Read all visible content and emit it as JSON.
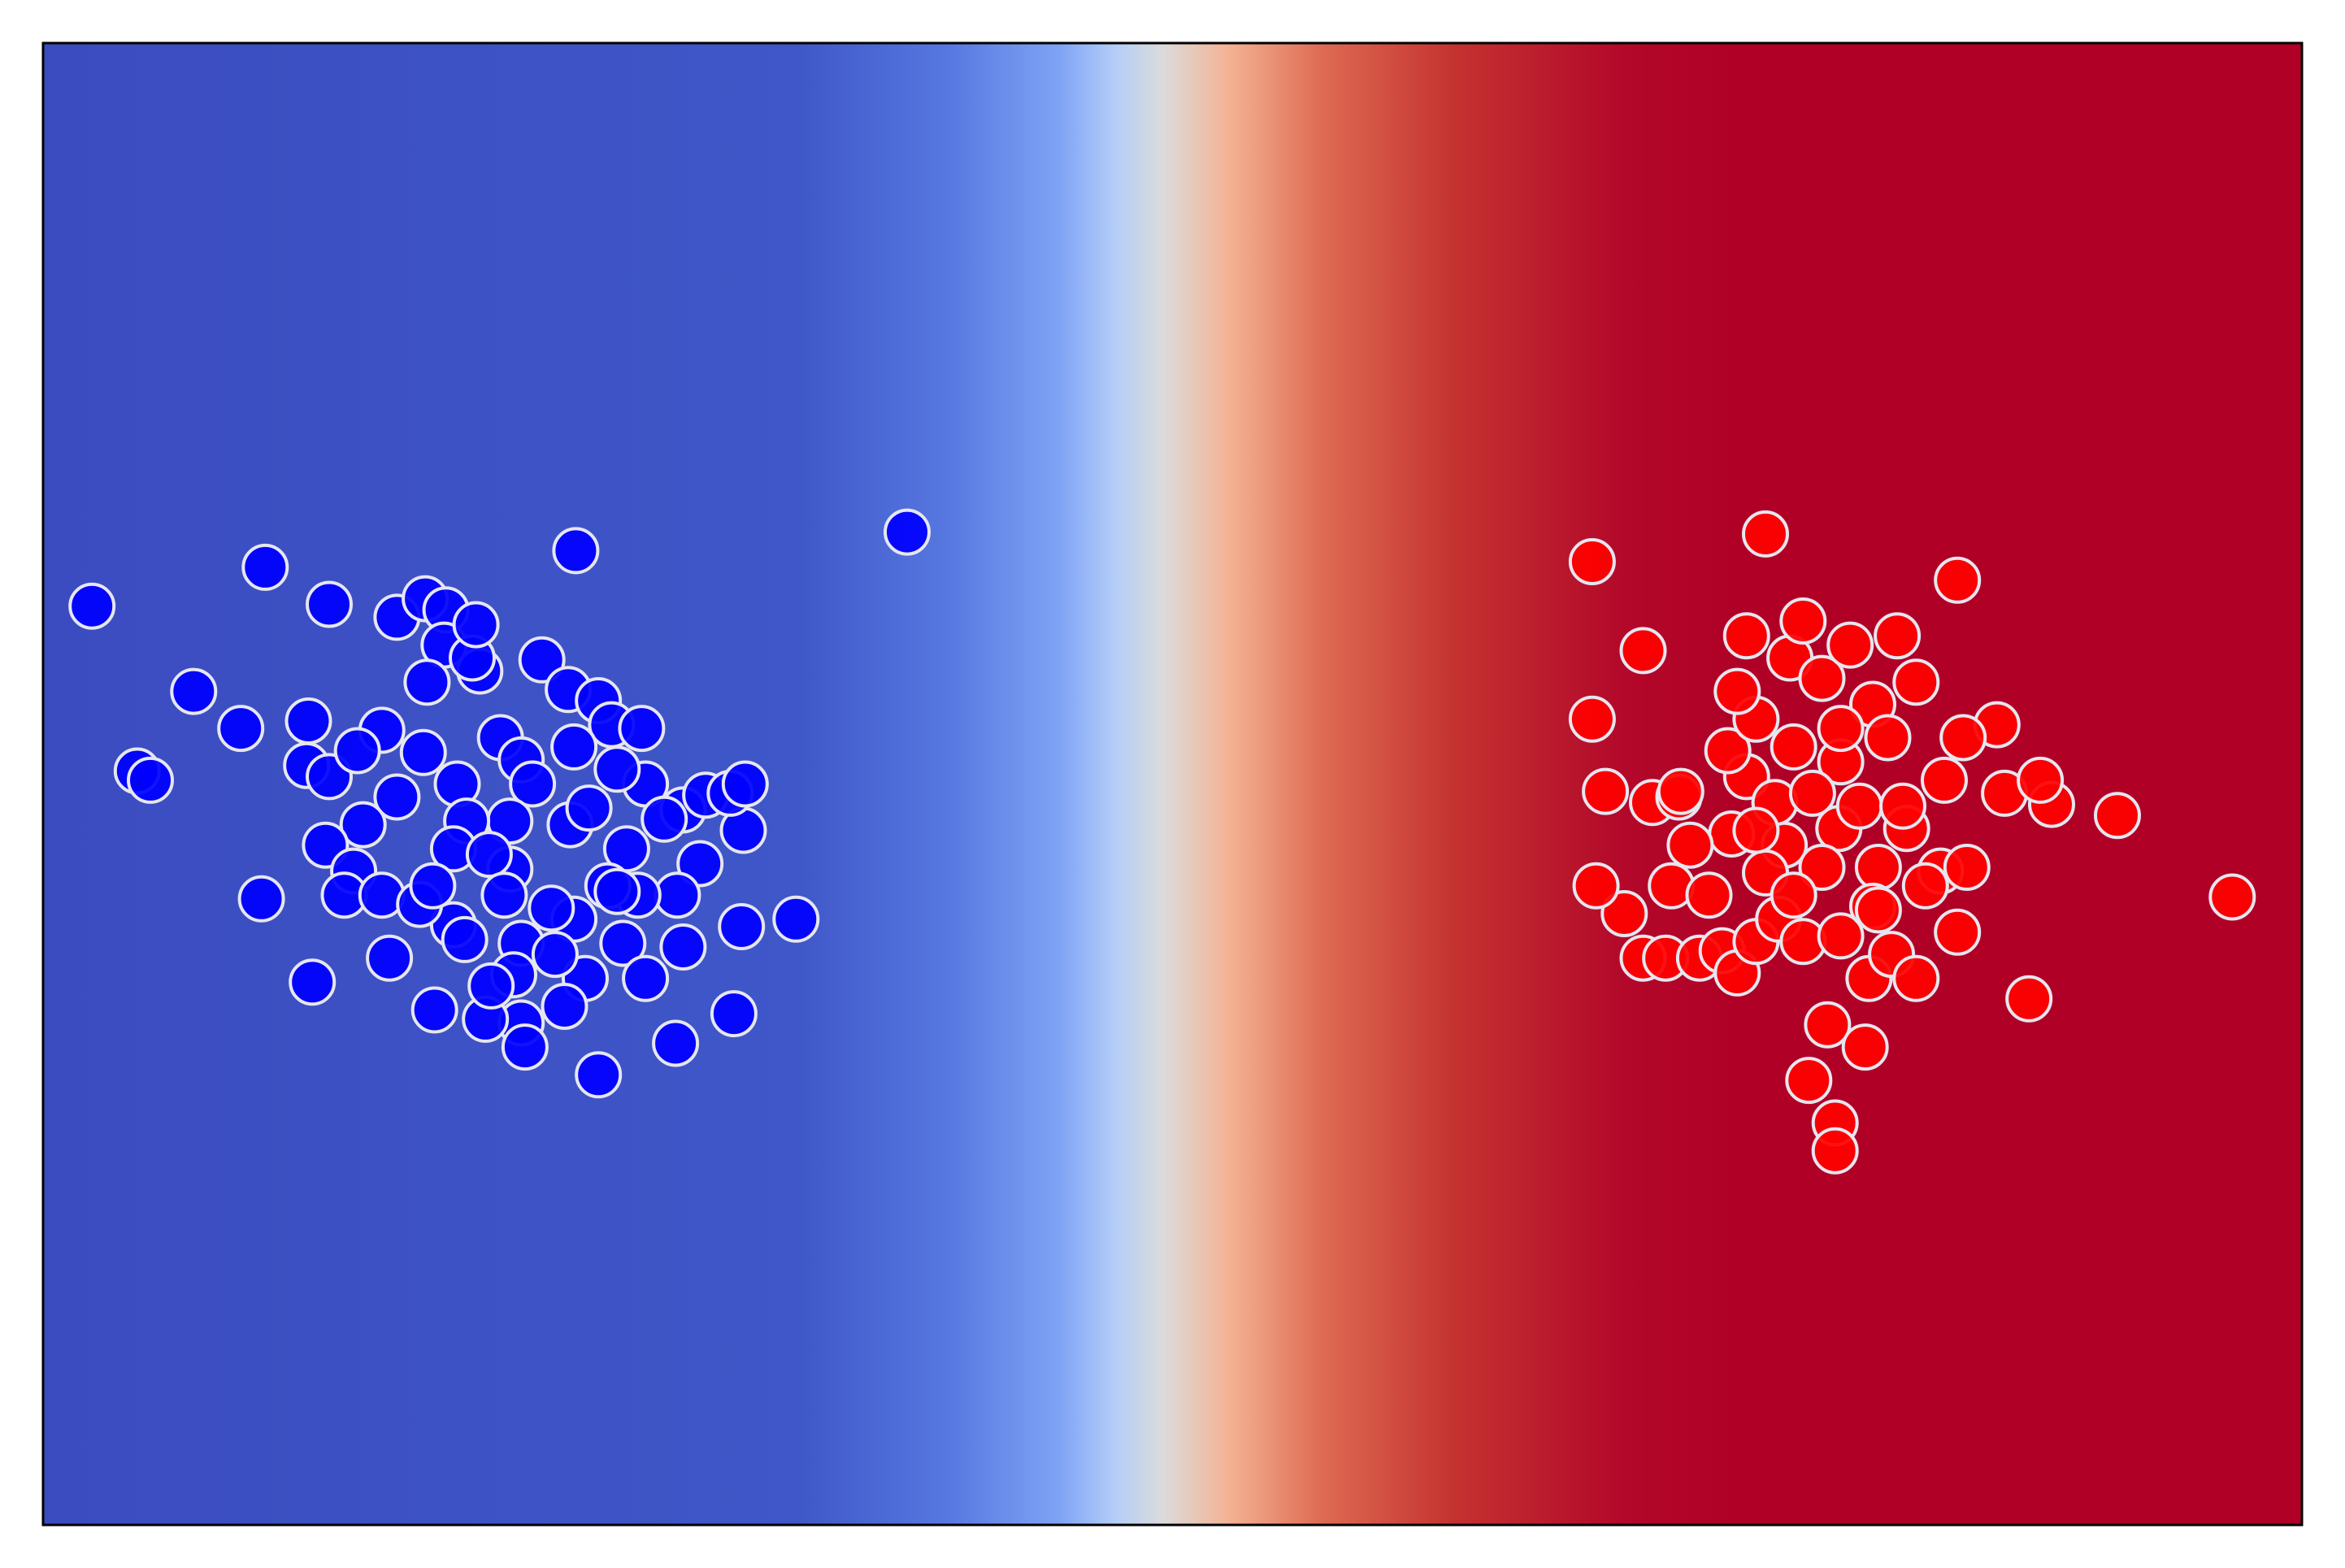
{
  "chart_data": {
    "type": "scatter",
    "title": "",
    "xlabel": "",
    "ylabel": "",
    "xlim": [
      -6,
      6
    ],
    "ylim": [
      -4,
      4
    ],
    "grid": false,
    "axis_ticks": "none",
    "background": {
      "type": "decision-surface",
      "colormap": "coolwarm",
      "boundary_x": 0.8,
      "stops": [
        {
          "x": -6.0,
          "color": "#3B4CC0"
        },
        {
          "x": -2.0,
          "color": "#3F57C8"
        },
        {
          "x": -1.2,
          "color": "#5677E0"
        },
        {
          "x": -0.6,
          "color": "#7FA3F5"
        },
        {
          "x": -0.3,
          "color": "#B5CEF7"
        },
        {
          "x": -0.05,
          "color": "#DBDBDB"
        },
        {
          "x": 0.3,
          "color": "#F4B293"
        },
        {
          "x": 0.8,
          "color": "#DE6A52"
        },
        {
          "x": 1.5,
          "color": "#C43230"
        },
        {
          "x": 2.4,
          "color": "#B3082A"
        },
        {
          "x": 3.0,
          "color": "#B00026"
        },
        {
          "x": 6.0,
          "color": "#B00026"
        }
      ]
    },
    "series": [
      {
        "color": "#0000FF",
        "edgecolor": "#E6E6F0",
        "points": [
          [
            -5.74,
            0.96
          ],
          [
            -4.82,
            1.17
          ],
          [
            -3.17,
            1.26
          ],
          [
            -1.41,
            1.36
          ],
          [
            -4.12,
            0.9
          ],
          [
            -4.48,
            0.97
          ],
          [
            -3.97,
            1.0
          ],
          [
            -3.86,
            0.94
          ],
          [
            -3.68,
            0.61
          ],
          [
            -3.35,
            0.67
          ],
          [
            -3.21,
            0.51
          ],
          [
            -3.05,
            0.45
          ],
          [
            -3.87,
            0.75
          ],
          [
            -3.72,
            0.68
          ],
          [
            -5.2,
            0.5
          ],
          [
            -4.95,
            0.3
          ],
          [
            -5.5,
            0.07
          ],
          [
            -5.43,
            0.02
          ],
          [
            -4.59,
            0.34
          ],
          [
            -4.2,
            0.29
          ],
          [
            -4.6,
            0.1
          ],
          [
            -4.48,
            0.04
          ],
          [
            -4.33,
            0.18
          ],
          [
            -3.98,
            0.17
          ],
          [
            -3.57,
            0.25
          ],
          [
            -3.46,
            0.13
          ],
          [
            -3.8,
            0.0
          ],
          [
            -3.4,
            0.0
          ],
          [
            -2.98,
            0.32
          ],
          [
            -2.82,
            0.3
          ],
          [
            -2.8,
            0.0
          ],
          [
            -2.6,
            -0.14
          ],
          [
            -3.52,
            -0.2
          ],
          [
            -3.75,
            -0.2
          ],
          [
            -4.12,
            -0.07
          ],
          [
            -4.3,
            -0.22
          ],
          [
            -4.5,
            -0.33
          ],
          [
            -4.35,
            -0.47
          ],
          [
            -4.4,
            -0.6
          ],
          [
            -4.2,
            -0.6
          ],
          [
            -3.82,
            -0.35
          ],
          [
            -3.52,
            -0.46
          ],
          [
            -3.2,
            -0.22
          ],
          [
            -2.9,
            -0.35
          ],
          [
            -2.7,
            -0.19
          ],
          [
            -2.51,
            -0.43
          ],
          [
            -2.63,
            -0.6
          ],
          [
            -2.84,
            -0.6
          ],
          [
            -2.92,
            -0.86
          ],
          [
            -3.18,
            -0.73
          ],
          [
            -3.46,
            -0.86
          ],
          [
            -3.82,
            -0.76
          ],
          [
            -4.0,
            -0.65
          ],
          [
            -2.29,
            -0.77
          ],
          [
            -3.5,
            -1.03
          ],
          [
            -3.12,
            -1.05
          ],
          [
            -2.8,
            -1.05
          ],
          [
            -2.6,
            -0.88
          ],
          [
            -3.23,
            -1.2
          ],
          [
            -3.46,
            -1.29
          ],
          [
            -3.65,
            -1.27
          ],
          [
            -3.92,
            -1.22
          ],
          [
            -4.16,
            -0.94
          ],
          [
            -4.57,
            -1.07
          ],
          [
            -4.84,
            -0.62
          ],
          [
            -2.64,
            -1.4
          ],
          [
            -2.33,
            -1.24
          ],
          [
            -2.28,
            -0.25
          ],
          [
            -3.05,
            -1.57
          ],
          [
            -3.44,
            -1.42
          ],
          [
            -2.48,
            -0.06
          ],
          [
            -3.63,
            -0.38
          ],
          [
            -3.0,
            -0.55
          ],
          [
            -3.28,
            -0.92
          ],
          [
            -3.76,
            -0.84
          ],
          [
            -3.55,
            -0.6
          ],
          [
            -2.95,
            0.08
          ],
          [
            -3.18,
            0.2
          ],
          [
            -3.96,
            0.55
          ],
          [
            -3.7,
            0.86
          ],
          [
            -2.0,
            -0.73
          ],
          [
            -3.93,
            -0.55
          ],
          [
            -3.1,
            -0.13
          ],
          [
            -2.35,
            -0.05
          ],
          [
            -2.27,
            0.0
          ],
          [
            -3.3,
            -0.67
          ],
          [
            -2.95,
            -0.58
          ],
          [
            -3.62,
            -1.09
          ]
        ]
      },
      {
        "color": "#FF0000",
        "edgecolor": "#E6E6F0",
        "points": [
          [
            2.23,
            1.2
          ],
          [
            3.15,
            1.35
          ],
          [
            4.17,
            1.1
          ],
          [
            3.05,
            0.8
          ],
          [
            2.5,
            0.72
          ],
          [
            3.28,
            0.68
          ],
          [
            3.45,
            0.57
          ],
          [
            3.72,
            0.43
          ],
          [
            4.38,
            0.32
          ],
          [
            2.23,
            0.35
          ],
          [
            2.3,
            -0.04
          ],
          [
            2.55,
            -0.1
          ],
          [
            2.69,
            -0.07
          ],
          [
            3.05,
            0.04
          ],
          [
            2.95,
            0.18
          ],
          [
            3.3,
            0.2
          ],
          [
            3.55,
            0.12
          ],
          [
            3.8,
            0.25
          ],
          [
            4.1,
            0.02
          ],
          [
            4.42,
            -0.05
          ],
          [
            4.67,
            -0.11
          ],
          [
            4.61,
            0.02
          ],
          [
            5.02,
            -0.17
          ],
          [
            4.08,
            -0.47
          ],
          [
            3.9,
            -0.24
          ],
          [
            3.54,
            -0.24
          ],
          [
            3.25,
            -0.33
          ],
          [
            2.97,
            -0.27
          ],
          [
            2.75,
            -0.33
          ],
          [
            2.65,
            -0.55
          ],
          [
            2.85,
            -0.6
          ],
          [
            3.15,
            -0.48
          ],
          [
            3.45,
            -0.45
          ],
          [
            3.75,
            -0.45
          ],
          [
            4.0,
            -0.55
          ],
          [
            4.22,
            -0.45
          ],
          [
            2.4,
            -0.7
          ],
          [
            2.5,
            -0.94
          ],
          [
            2.62,
            -0.94
          ],
          [
            2.8,
            -0.94
          ],
          [
            2.92,
            -0.9
          ],
          [
            3.0,
            -1.02
          ],
          [
            3.1,
            -0.85
          ],
          [
            3.22,
            -0.73
          ],
          [
            3.35,
            -0.85
          ],
          [
            3.55,
            -0.82
          ],
          [
            3.7,
            -1.05
          ],
          [
            3.82,
            -0.92
          ],
          [
            3.95,
            -1.05
          ],
          [
            4.17,
            -0.8
          ],
          [
            4.55,
            -1.16
          ],
          [
            3.72,
            -0.66
          ],
          [
            3.48,
            -1.3
          ],
          [
            3.68,
            -1.42
          ],
          [
            3.38,
            -1.6
          ],
          [
            3.52,
            -1.83
          ],
          [
            3.52,
            -1.98
          ],
          [
            5.63,
            -0.61
          ],
          [
            2.25,
            -0.55
          ],
          [
            2.7,
            -0.04
          ],
          [
            3.35,
            0.88
          ],
          [
            3.6,
            0.75
          ],
          [
            3.85,
            0.8
          ],
          [
            3.95,
            0.55
          ],
          [
            3.1,
            0.35
          ],
          [
            3.2,
            -0.1
          ],
          [
            3.4,
            -0.05
          ],
          [
            3.65,
            -0.12
          ],
          [
            3.88,
            -0.12
          ],
          [
            3.3,
            -0.6
          ],
          [
            3.1,
            -0.25
          ],
          [
            4.2,
            0.25
          ],
          [
            3.0,
            0.5
          ],
          [
            3.55,
            0.3
          ],
          [
            3.75,
            -0.68
          ]
        ]
      }
    ]
  }
}
